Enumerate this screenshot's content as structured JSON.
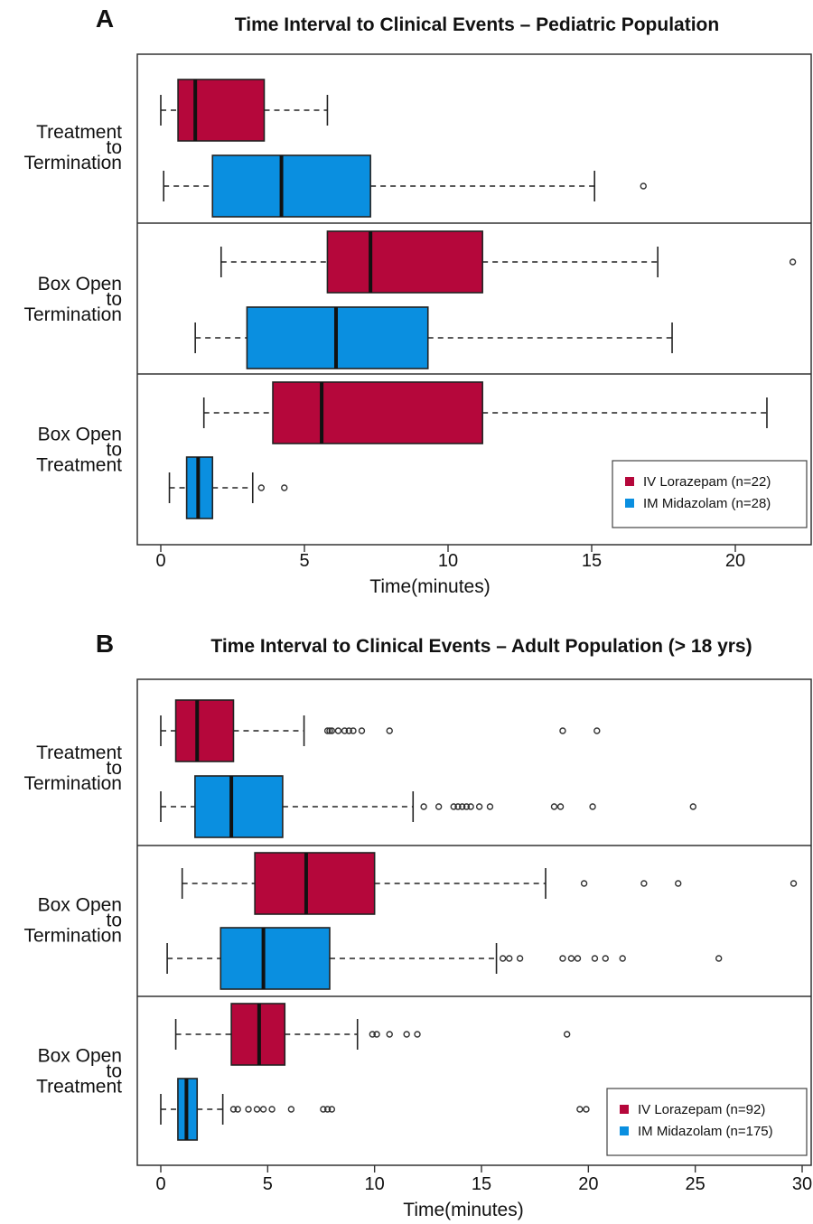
{
  "chart_data": [
    {
      "type": "boxplot",
      "panel": "A",
      "title": "Time Interval to Clinical Events – Pediatric Population",
      "xlabel": "Time(minutes)",
      "xlim": [
        -0.8,
        22.5
      ],
      "xticks": [
        0,
        5,
        10,
        15,
        20
      ],
      "groups": [
        {
          "label_lines": [
            "Treatment",
            "to",
            "Termination"
          ],
          "boxes": [
            {
              "series": "IV Lorazepam (n=22)",
              "whisker_low": 0.0,
              "q1": 0.6,
              "median": 1.2,
              "q3": 3.6,
              "whisker_high": 5.8,
              "outliers": []
            },
            {
              "series": "IM Midazolam (n=28)",
              "whisker_low": 0.1,
              "q1": 1.8,
              "median": 4.2,
              "q3": 7.3,
              "whisker_high": 15.1,
              "outliers": [
                16.8
              ]
            }
          ]
        },
        {
          "label_lines": [
            "Box Open",
            "to",
            "Termination"
          ],
          "boxes": [
            {
              "series": "IV Lorazepam (n=22)",
              "whisker_low": 2.1,
              "q1": 5.8,
              "median": 7.3,
              "q3": 11.2,
              "whisker_high": 17.3,
              "outliers": [
                22.0
              ]
            },
            {
              "series": "IM Midazolam (n=28)",
              "whisker_low": 1.2,
              "q1": 3.0,
              "median": 6.1,
              "q3": 9.3,
              "whisker_high": 17.8,
              "outliers": []
            }
          ]
        },
        {
          "label_lines": [
            "Box Open",
            "to",
            "Treatment"
          ],
          "boxes": [
            {
              "series": "IV Lorazepam (n=22)",
              "whisker_low": 1.5,
              "q1": 3.9,
              "median": 5.6,
              "q3": 11.2,
              "whisker_high": 21.1,
              "outliers": []
            },
            {
              "series": "IM Midazolam (n=28)",
              "whisker_low": 0.3,
              "q1": 0.9,
              "median": 1.3,
              "q3": 1.8,
              "whisker_high": 3.2,
              "outliers": [
                3.5,
                4.3
              ]
            }
          ]
        }
      ],
      "legend": {
        "position": "bottom-right",
        "entries": [
          {
            "name": "IV Lorazepam (n=22)",
            "color": "#b5073b"
          },
          {
            "name": "IM Midazolam (n=28)",
            "color": "#0a8fe0"
          }
        ]
      }
    },
    {
      "type": "boxplot",
      "panel": "B",
      "title": "Time Interval to Clinical Events – Adult Population (> 18 yrs)",
      "xlabel": "Time(minutes)",
      "xlim": [
        -1.0,
        30.3
      ],
      "xticks": [
        0,
        5,
        10,
        15,
        20,
        25,
        30
      ],
      "groups": [
        {
          "label_lines": [
            "Treatment",
            "to",
            "Termination"
          ],
          "boxes": [
            {
              "series": "IV Lorazepam (n=92)",
              "whisker_low": 0.0,
              "q1": 0.7,
              "median": 1.7,
              "q3": 3.4,
              "whisker_high": 6.7,
              "outliers": [
                7.8,
                7.9,
                8.0,
                8.3,
                8.6,
                8.8,
                9.0,
                9.4,
                10.7,
                18.8,
                20.4
              ]
            },
            {
              "series": "IM Midazolam (n=175)",
              "whisker_low": 0.0,
              "q1": 1.6,
              "median": 3.3,
              "q3": 5.7,
              "whisker_high": 11.8,
              "outliers": [
                12.3,
                13.0,
                13.7,
                13.9,
                14.1,
                14.3,
                14.5,
                14.9,
                15.4,
                18.4,
                18.7,
                20.2,
                24.9
              ]
            }
          ]
        },
        {
          "label_lines": [
            "Box Open",
            "to",
            "Termination"
          ],
          "boxes": [
            {
              "series": "IV Lorazepam (n=92)",
              "whisker_low": 1.0,
              "q1": 4.4,
              "median": 6.8,
              "q3": 10.0,
              "whisker_high": 18.0,
              "outliers": [
                19.8,
                22.6,
                24.2,
                29.6
              ]
            },
            {
              "series": "IM Midazolam (n=175)",
              "whisker_low": 0.3,
              "q1": 2.8,
              "median": 4.8,
              "q3": 7.9,
              "whisker_high": 15.7,
              "outliers": [
                16.0,
                16.3,
                16.8,
                18.8,
                19.2,
                19.5,
                20.3,
                20.8,
                21.6,
                26.1
              ]
            }
          ]
        },
        {
          "label_lines": [
            "Box Open",
            "to",
            "Treatment"
          ],
          "boxes": [
            {
              "series": "IV Lorazepam (n=92)",
              "whisker_low": 0.7,
              "q1": 3.3,
              "median": 4.6,
              "q3": 5.8,
              "whisker_high": 9.2,
              "outliers": [
                9.9,
                10.1,
                10.7,
                11.5,
                12.0,
                19.0
              ]
            },
            {
              "series": "IM Midazolam (n=175)",
              "whisker_low": 0.0,
              "q1": 0.8,
              "median": 1.2,
              "q3": 1.7,
              "whisker_high": 2.9,
              "outliers": [
                3.4,
                3.6,
                4.1,
                4.5,
                4.8,
                5.2,
                6.1,
                7.6,
                7.8,
                8.0,
                19.6,
                19.9
              ]
            }
          ]
        }
      ],
      "legend": {
        "position": "bottom-right",
        "entries": [
          {
            "name": "IV Lorazepam (n=92)",
            "color": "#b5073b"
          },
          {
            "name": "IM Midazolam (n=175)",
            "color": "#0a8fe0"
          }
        ]
      }
    }
  ]
}
